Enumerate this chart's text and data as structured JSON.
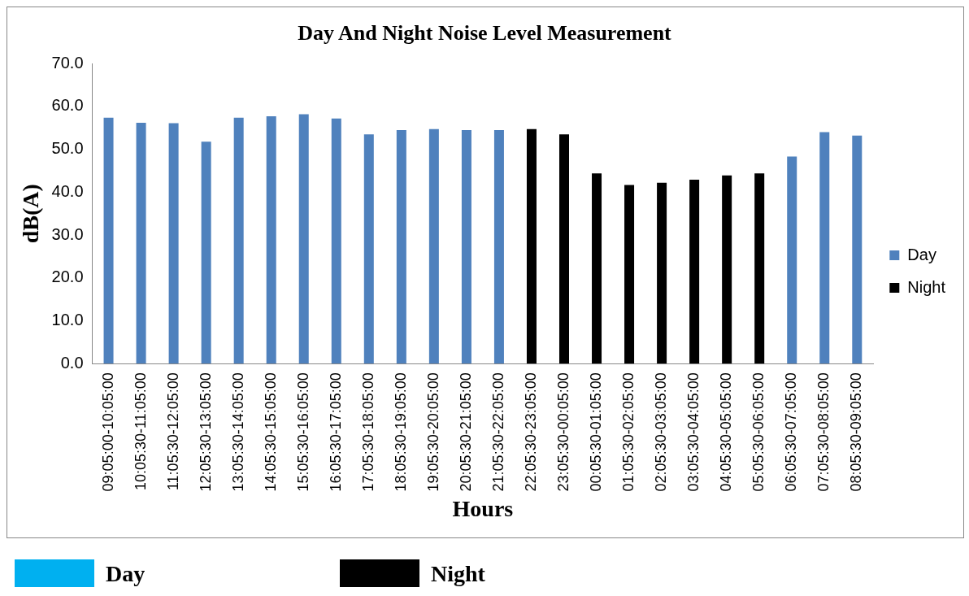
{
  "chart_data": {
    "type": "bar",
    "title": "Day And Night Noise Level Measurement",
    "xlabel": "Hours",
    "ylabel": "dB(A)",
    "categories": [
      "09:05:00-10:05:00",
      "10:05:30-11:05:00",
      "11:05:30-12:05:00",
      "12:05:30-13:05:00",
      "13:05:30-14:05:00",
      "14:05:30-15:05:00",
      "15:05:30-16:05:00",
      "16:05:30-17:05:00",
      "17:05:30-18:05:00",
      "18:05:30-19:05:00",
      "19:05:30-20:05:00",
      "20:05:30-21:05:00",
      "21:05:30-22:05:00",
      "22:05:30-23:05:00",
      "23:05:30-00:05:00",
      "00:05:30-01:05:00",
      "01:05:30-02:05:00",
      "02:05:30-03:05:00",
      "03:05:30-04:05:00",
      "04:05:30-05:05:00",
      "05:05:30-06:05:00",
      "06:05:30-07:05:00",
      "07:05:30-08:05:00",
      "08:05:30-09:05:00"
    ],
    "series": [
      {
        "name": "Day",
        "color": "#4f81bd",
        "values": [
          57.4,
          56.2,
          56.1,
          51.8,
          57.4,
          57.7,
          58.2,
          57.2,
          53.5,
          54.5,
          54.7,
          54.5,
          54.5,
          null,
          null,
          null,
          null,
          null,
          null,
          null,
          null,
          48.3,
          54.0,
          53.2
        ]
      },
      {
        "name": "Night",
        "color": "#000000",
        "values": [
          null,
          null,
          null,
          null,
          null,
          null,
          null,
          null,
          null,
          null,
          null,
          null,
          null,
          54.7,
          53.5,
          44.4,
          41.7,
          42.2,
          42.9,
          43.9,
          44.4,
          null,
          null,
          null
        ]
      }
    ],
    "stacked": true,
    "ylim": [
      0,
      70
    ],
    "yticks": [
      {
        "value": 0,
        "label": "0.0"
      },
      {
        "value": 10,
        "label": "10.0"
      },
      {
        "value": 20,
        "label": "20.0"
      },
      {
        "value": 30,
        "label": "30.0"
      },
      {
        "value": 40,
        "label": "40.0"
      },
      {
        "value": 50,
        "label": "50.0"
      },
      {
        "value": 60,
        "label": "60.0"
      },
      {
        "value": 70,
        "label": "70.0"
      }
    ],
    "grid": false,
    "legend": "right",
    "annotations": [
      "Day",
      "Night"
    ]
  }
}
